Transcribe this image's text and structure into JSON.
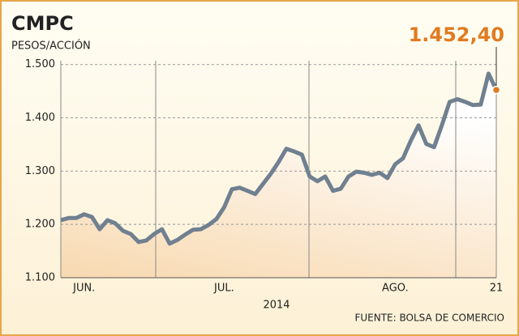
{
  "chart_data": {
    "type": "line",
    "title": "CMPC",
    "subtitle": "PESOS/ACCIÓN",
    "xlabel": "2014",
    "source": "FUENTE: BOLSA DE COMERCIO",
    "categories": [
      null,
      null,
      null,
      "JUN.",
      null,
      null,
      null,
      null,
      null,
      null,
      null,
      null,
      null,
      null,
      null,
      null,
      null,
      null,
      null,
      null,
      null,
      "JUL.",
      null,
      null,
      null,
      null,
      null,
      null,
      null,
      null,
      null,
      null,
      null,
      null,
      null,
      null,
      null,
      null,
      null,
      null,
      null,
      null,
      null,
      "AGO.",
      null,
      null,
      null,
      null,
      null,
      null,
      null,
      null,
      null,
      null,
      null,
      null,
      "21"
    ],
    "series": [
      {
        "name": "CMPC",
        "color": "#6f8090",
        "values": [
          1208,
          1212,
          1212,
          1219,
          1214,
          1191,
          1208,
          1202,
          1188,
          1182,
          1167,
          1170,
          1182,
          1191,
          1164,
          1171,
          1181,
          1190,
          1191,
          1199,
          1210,
          1232,
          1266,
          1269,
          1263,
          1257,
          1276,
          1295,
          1317,
          1342,
          1337,
          1331,
          1290,
          1281,
          1290,
          1263,
          1267,
          1290,
          1299,
          1297,
          1293,
          1297,
          1287,
          1313,
          1324,
          1357,
          1386,
          1351,
          1345,
          1386,
          1430,
          1435,
          1430,
          1424,
          1425,
          1483,
          1452.4
        ],
        "value_labels": [
          null,
          null,
          null,
          null,
          null,
          null,
          null,
          null,
          null,
          null,
          null,
          null,
          null,
          null,
          null,
          null,
          null,
          null,
          null,
          null,
          null,
          null,
          null,
          null,
          null,
          null,
          null,
          null,
          null,
          null,
          null,
          null,
          null,
          null,
          null,
          null,
          null,
          null,
          null,
          null,
          null,
          null,
          null,
          null,
          null,
          null,
          null,
          null,
          null,
          null,
          null,
          null,
          null,
          null,
          null,
          null,
          "1.452,40"
        ]
      }
    ],
    "ylim": [
      1100,
      1530
    ],
    "yticks": [
      {
        "value": 1100,
        "label": "1.100"
      },
      {
        "value": 1200,
        "label": "1.200"
      },
      {
        "value": 1300,
        "label": "1.300"
      },
      {
        "value": 1400,
        "label": "1.400"
      },
      {
        "value": 1500,
        "label": "1.500"
      }
    ],
    "grid": true,
    "marker_color": "#e07b20"
  }
}
